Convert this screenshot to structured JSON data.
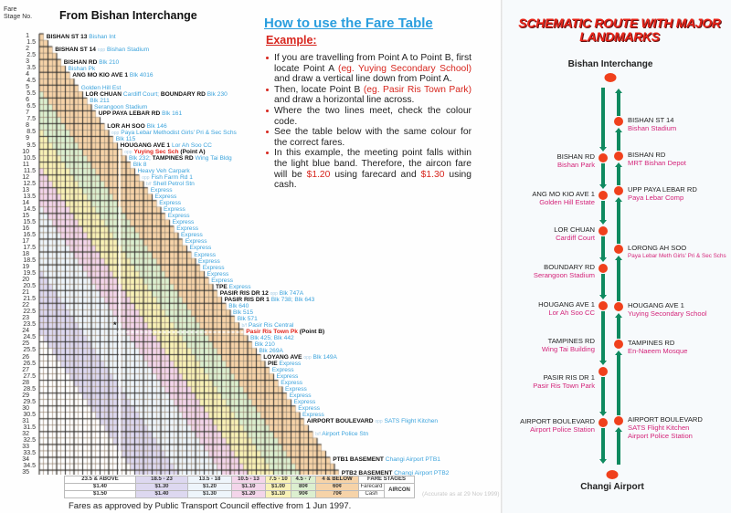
{
  "fare_table": {
    "stage_header": "Fare Stage No.",
    "title": "From Bishan Interchange",
    "stages": [
      "1",
      "1.5",
      "2",
      "2.5",
      "3",
      "3.5",
      "4",
      "4.5",
      "5",
      "5.5",
      "6",
      "6.5",
      "7",
      "7.5",
      "8",
      "8.5",
      "9",
      "9.5",
      "10",
      "10.5",
      "11",
      "11.5",
      "12",
      "12.5",
      "13",
      "13.5",
      "14",
      "14.5",
      "15",
      "15.5",
      "16",
      "16.5",
      "17",
      "17.5",
      "18",
      "18.5",
      "19",
      "19.5",
      "20",
      "20.5",
      "21",
      "21.5",
      "22",
      "22.5",
      "23",
      "23.5",
      "24",
      "24.5",
      "25",
      "25.5",
      "26",
      "26.5",
      "27",
      "27.5",
      "28",
      "28.5",
      "29",
      "29.5",
      "30",
      "30.5",
      "31",
      "31.5",
      "32",
      "32.5",
      "33",
      "33.5",
      "34",
      "34.5",
      "35"
    ],
    "stops": [
      {
        "stage": 1,
        "segs": [
          {
            "t": "BISHAN ST 13",
            "c": "road"
          },
          {
            "t": "Bishan Int",
            "c": "lm"
          }
        ]
      },
      {
        "stage": 2,
        "segs": [
          {
            "t": "BISHAN ST 14",
            "c": "road"
          },
          {
            "t": "opp",
            "c": "pre"
          },
          {
            "t": "Bishan Stadium",
            "c": "lm"
          }
        ]
      },
      {
        "stage": 3,
        "segs": [
          {
            "t": "BISHAN RD",
            "c": "road"
          },
          {
            "t": "Blk 210",
            "c": "lm"
          }
        ]
      },
      {
        "stage": 3.5,
        "segs": [
          {
            "t": "Bishan Pk",
            "c": "lm"
          }
        ]
      },
      {
        "stage": 4,
        "segs": [
          {
            "t": "ANG MO KIO AVE 1",
            "c": "road"
          },
          {
            "t": "Blk 4016",
            "c": "lm"
          }
        ]
      },
      {
        "stage": 5,
        "segs": [
          {
            "t": "Golden Hill Est",
            "c": "lm"
          }
        ]
      },
      {
        "stage": 5.5,
        "segs": [
          {
            "t": "LOR CHUAN",
            "c": "road"
          },
          {
            "t": "Cardiff Court;",
            "c": "lm"
          },
          {
            "t": "BOUNDARY RD",
            "c": "road"
          },
          {
            "t": "Blk 230",
            "c": "lm"
          }
        ]
      },
      {
        "stage": 6,
        "segs": [
          {
            "t": "Blk 211",
            "c": "lm"
          }
        ]
      },
      {
        "stage": 6.5,
        "segs": [
          {
            "t": "Serangoon Stadium",
            "c": "lm"
          }
        ]
      },
      {
        "stage": 7,
        "segs": [
          {
            "t": "UPP PAYA LEBAR RD",
            "c": "road"
          },
          {
            "t": "Blk 161",
            "c": "lm"
          }
        ]
      },
      {
        "stage": 8,
        "segs": [
          {
            "t": "LOR AH SOO",
            "c": "road"
          },
          {
            "t": "Blk 146",
            "c": "lm"
          }
        ]
      },
      {
        "stage": 8.5,
        "segs": [
          {
            "t": "opp",
            "c": "pre"
          },
          {
            "t": "Paya Lebar Methodist Girls' Pri & Sec Schs",
            "c": "lm"
          }
        ]
      },
      {
        "stage": 9,
        "segs": [
          {
            "t": "Blk 115",
            "c": "lm"
          }
        ]
      },
      {
        "stage": 9.5,
        "segs": [
          {
            "t": "HOUGANG AVE 1",
            "c": "road"
          },
          {
            "t": "Lor Ah Soo CC",
            "c": "lm"
          }
        ]
      },
      {
        "stage": 10,
        "segs": [
          {
            "t": "opp",
            "c": "pre"
          },
          {
            "t": "Yuying Sec Sch",
            "c": "red"
          },
          {
            "t": "(Point A)",
            "c": "road"
          }
        ]
      },
      {
        "stage": 10.5,
        "segs": [
          {
            "t": "Blk 232;",
            "c": "lm"
          },
          {
            "t": "TAMPINES RD",
            "c": "road"
          },
          {
            "t": "Wing Tai Bldg",
            "c": "lm"
          }
        ]
      },
      {
        "stage": 11,
        "segs": [
          {
            "t": "Blk 8",
            "c": "lm"
          }
        ]
      },
      {
        "stage": 11.5,
        "segs": [
          {
            "t": "Heavy Veh Carpark",
            "c": "lm"
          }
        ]
      },
      {
        "stage": 12,
        "segs": [
          {
            "t": "opp",
            "c": "pre"
          },
          {
            "t": "Fish Farm Rd 1",
            "c": "lm"
          }
        ]
      },
      {
        "stage": 12.5,
        "segs": [
          {
            "t": "b/f",
            "c": "pre"
          },
          {
            "t": "Shell Petrol Stn",
            "c": "lm"
          }
        ]
      },
      {
        "stage": 13,
        "segs": [
          {
            "t": "Express",
            "c": "lm"
          }
        ]
      },
      {
        "stage": 13.5,
        "segs": [
          {
            "t": "Express",
            "c": "lm"
          }
        ]
      },
      {
        "stage": 14,
        "segs": [
          {
            "t": "Express",
            "c": "lm"
          }
        ]
      },
      {
        "stage": 14.5,
        "segs": [
          {
            "t": "Express",
            "c": "lm"
          }
        ]
      },
      {
        "stage": 15,
        "segs": [
          {
            "t": "Express",
            "c": "lm"
          }
        ]
      },
      {
        "stage": 15.5,
        "segs": [
          {
            "t": "Express",
            "c": "lm"
          }
        ]
      },
      {
        "stage": 16,
        "segs": [
          {
            "t": "Express",
            "c": "lm"
          }
        ]
      },
      {
        "stage": 16.5,
        "segs": [
          {
            "t": "Express",
            "c": "lm"
          }
        ]
      },
      {
        "stage": 17,
        "segs": [
          {
            "t": "Express",
            "c": "lm"
          }
        ]
      },
      {
        "stage": 17.5,
        "segs": [
          {
            "t": "Express",
            "c": "lm"
          }
        ]
      },
      {
        "stage": 18,
        "segs": [
          {
            "t": "Express",
            "c": "lm"
          }
        ]
      },
      {
        "stage": 18.5,
        "segs": [
          {
            "t": "Express",
            "c": "lm"
          }
        ]
      },
      {
        "stage": 19,
        "segs": [
          {
            "t": "Express",
            "c": "lm"
          }
        ]
      },
      {
        "stage": 19.5,
        "segs": [
          {
            "t": "Express",
            "c": "lm"
          }
        ]
      },
      {
        "stage": 20,
        "segs": [
          {
            "t": "Express",
            "c": "lm"
          }
        ]
      },
      {
        "stage": 20.5,
        "segs": [
          {
            "t": "TPE",
            "c": "road"
          },
          {
            "t": "Express",
            "c": "lm"
          }
        ]
      },
      {
        "stage": 21,
        "segs": [
          {
            "t": "PASIR RIS DR 12",
            "c": "road"
          },
          {
            "t": "opp",
            "c": "pre"
          },
          {
            "t": "Blk 747A",
            "c": "lm"
          }
        ]
      },
      {
        "stage": 21.5,
        "segs": [
          {
            "t": "PASIR RIS DR 1",
            "c": "road"
          },
          {
            "t": "Blk 738;  Blk 643",
            "c": "lm"
          }
        ]
      },
      {
        "stage": 22,
        "segs": [
          {
            "t": "Blk 640",
            "c": "lm"
          }
        ]
      },
      {
        "stage": 22.5,
        "segs": [
          {
            "t": "Blk 515",
            "c": "lm"
          }
        ]
      },
      {
        "stage": 23,
        "segs": [
          {
            "t": "Blk 571",
            "c": "lm"
          }
        ]
      },
      {
        "stage": 23.5,
        "segs": [
          {
            "t": "b/f",
            "c": "pre"
          },
          {
            "t": "Pasir Ris Central",
            "c": "lm"
          }
        ]
      },
      {
        "stage": 24,
        "segs": [
          {
            "t": "Pasir Ris Town Pk",
            "c": "red"
          },
          {
            "t": "(Point B)",
            "c": "road"
          }
        ]
      },
      {
        "stage": 24.5,
        "segs": [
          {
            "t": "Blk 425;  Blk 442",
            "c": "lm"
          }
        ]
      },
      {
        "stage": 25,
        "segs": [
          {
            "t": "Blk 210",
            "c": "lm"
          }
        ]
      },
      {
        "stage": 25.5,
        "segs": [
          {
            "t": "Blk 269A",
            "c": "lm"
          }
        ]
      },
      {
        "stage": 26,
        "segs": [
          {
            "t": "LOYANG AVE",
            "c": "road"
          },
          {
            "t": "opp",
            "c": "pre"
          },
          {
            "t": "Blk 149A",
            "c": "lm"
          }
        ]
      },
      {
        "stage": 26.5,
        "segs": [
          {
            "t": "PIE",
            "c": "road"
          },
          {
            "t": "Express",
            "c": "lm"
          }
        ]
      },
      {
        "stage": 27,
        "segs": [
          {
            "t": "Express",
            "c": "lm"
          }
        ]
      },
      {
        "stage": 27.5,
        "segs": [
          {
            "t": "Express",
            "c": "lm"
          }
        ]
      },
      {
        "stage": 28,
        "segs": [
          {
            "t": "Express",
            "c": "lm"
          }
        ]
      },
      {
        "stage": 28.5,
        "segs": [
          {
            "t": "Express",
            "c": "lm"
          }
        ]
      },
      {
        "stage": 29,
        "segs": [
          {
            "t": "Express",
            "c": "lm"
          }
        ]
      },
      {
        "stage": 29.5,
        "segs": [
          {
            "t": "Express",
            "c": "lm"
          }
        ]
      },
      {
        "stage": 30,
        "segs": [
          {
            "t": "Express",
            "c": "lm"
          }
        ]
      },
      {
        "stage": 30.5,
        "segs": [
          {
            "t": "Express",
            "c": "lm"
          }
        ]
      },
      {
        "stage": 31,
        "segs": [
          {
            "t": "AIRPORT BOULEVARD",
            "c": "road"
          },
          {
            "t": "opp",
            "c": "pre"
          },
          {
            "t": "SATS Flight Kitchen",
            "c": "lm"
          }
        ]
      },
      {
        "stage": 32,
        "segs": [
          {
            "t": "b/f",
            "c": "pre"
          },
          {
            "t": "Airport Police Stn",
            "c": "lm"
          }
        ]
      },
      {
        "stage": 34,
        "segs": [
          {
            "t": "PTB1 BASEMENT",
            "c": "road"
          },
          {
            "t": "Changi Airport PTB1",
            "c": "lm"
          }
        ]
      },
      {
        "stage": 35,
        "segs": [
          {
            "t": "PTB2 BASEMENT",
            "c": "road"
          },
          {
            "t": "Changi Airport PTB2",
            "c": "lm"
          }
        ]
      }
    ],
    "point_a_stage": 10,
    "point_b_stage": 24,
    "band_colors": {
      "4 & BELOW": "#f6d3a8",
      "4.5 - 7": "#dcefcf",
      "7.5 - 10": "#f8f1b6",
      "10.5 - 13": "#f3d5ea",
      "13.5 - 18": "#eef5fb",
      "18.5 - 23": "#ddd8f0",
      "23.5 & ABOVE": "#ffffff"
    }
  },
  "legend": {
    "bands": [
      "23.5 & ABOVE",
      "18.5 - 23",
      "13.5 - 18",
      "10.5 - 13",
      "7.5 - 10",
      "4.5 - 7",
      "4 & BELOW"
    ],
    "farecard": [
      "$1.40",
      "$1.30",
      "$1.20",
      "$1.10",
      "$1.00",
      "80¢",
      "60¢"
    ],
    "cash": [
      "$1.50",
      "$1.40",
      "$1.30",
      "$1.20",
      "$1.10",
      "90¢",
      "70¢"
    ],
    "fare_stages": "FARE STAGES",
    "farecard_label": "Farecard",
    "cash_label": "Cash",
    "aircon_label": "AIRCON"
  },
  "footer": {
    "approval": "Fares as approved by Public Transport Council effective from 1 Jun 1997.",
    "accurate": "(Accurate as at 29 Nov 1999)"
  },
  "howto": {
    "title": "How to use the Fare Table",
    "example": "Example:",
    "b1_a": "If you are travelling from Point A to Point B, first locate Point A ",
    "b1_red": "(eg. Yuying Secondary School)",
    "b1_b": " and draw a vertical line down from Point A.",
    "b2_a": "Then, locate Point B ",
    "b2_red": "(eg. Pasir Ris Town Park)",
    "b2_b": " and draw a horizontal line across.",
    "b3": "Where the two lines meet, check the colour code.",
    "b4": "See the table below with the same colour for the correct fares.",
    "b5_a": "In this example, the meeting point falls within the light blue band.  Therefore, the aircon fare will be ",
    "b5_red1": "$1.20",
    "b5_b": " using farecard and ",
    "b5_red2": "$1.30",
    "b5_c": " using cash."
  },
  "route": {
    "title": "SCHEMATIC ROUTE WITH MAJOR LANDMARKS",
    "start": "Bishan Interchange",
    "end": "Changi Airport",
    "line_color": "#0f8a5f",
    "stop_color": "#f0401c",
    "outbound": [
      {
        "name": "BISHAN RD",
        "landmark": "Bishan Park"
      },
      {
        "name": "ANG MO KIO AVE 1",
        "landmark": "Golden Hill Estate"
      },
      {
        "name": "LOR CHUAN",
        "landmark": "Cardiff Court"
      },
      {
        "name": "BOUNDARY RD",
        "landmark": "Serangoon Stadium"
      },
      {
        "name": "HOUGANG AVE 1",
        "landmark": "Lor Ah Soo CC"
      },
      {
        "name": "TAMPINES RD",
        "landmark": "Wing Tai Building"
      },
      {
        "name": "PASIR RIS DR 1",
        "landmark": "Pasir Ris Town Park"
      },
      {
        "name": "AIRPORT BOULEVARD",
        "landmark": "Airport Police Station"
      }
    ],
    "inbound": [
      {
        "name": "BISHAN ST 14",
        "landmark": "Bishan Stadium"
      },
      {
        "name": "BISHAN RD",
        "landmark": "MRT Bishan Depot"
      },
      {
        "name": "UPP PAYA LEBAR RD",
        "landmark": "Paya Lebar Comp"
      },
      {
        "name": "LORONG AH SOO",
        "landmark": "Paya Lebar Meth Girls' Pri & Sec Schs"
      },
      {
        "name": "HOUGANG AVE 1",
        "landmark": "Yuying Secondary School"
      },
      {
        "name": "TAMPINES RD",
        "landmark": "En-Naeem Mosque"
      },
      {
        "name": "AIRPORT BOULEVARD",
        "landmark": "SATS Flight Kitchen",
        "landmark2": "Airport Police Station"
      }
    ]
  }
}
